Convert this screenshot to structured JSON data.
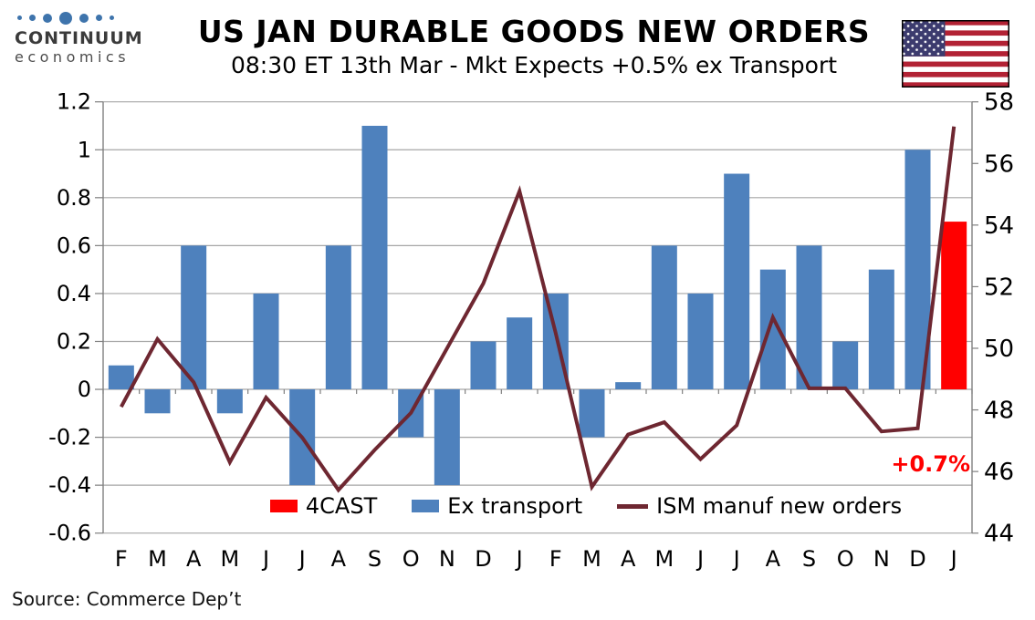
{
  "header": {
    "logo": {
      "line1": "CONTINUUM",
      "line2": "economics"
    },
    "title": "US JAN DURABLE GOODS NEW ORDERS",
    "subtitle": "08:30 ET 13th Mar - Mkt Expects +0.5% ex Transport"
  },
  "chart_data": {
    "type": "bar+line",
    "categories": [
      "F",
      "M",
      "A",
      "M",
      "J",
      "J",
      "A",
      "S",
      "O",
      "N",
      "D",
      "J",
      "F",
      "M",
      "A",
      "M",
      "J",
      "J",
      "A",
      "S",
      "O",
      "N",
      "D",
      "J"
    ],
    "series": [
      {
        "name": "4CAST",
        "type": "bar",
        "axis": "left",
        "color": "#FF0000",
        "values": [
          null,
          null,
          null,
          null,
          null,
          null,
          null,
          null,
          null,
          null,
          null,
          null,
          null,
          null,
          null,
          null,
          null,
          null,
          null,
          null,
          null,
          null,
          null,
          0.7
        ]
      },
      {
        "name": "Ex transport",
        "type": "bar",
        "axis": "left",
        "color": "#4E81BD",
        "values": [
          0.1,
          -0.1,
          0.6,
          -0.1,
          0.4,
          -0.4,
          0.6,
          1.1,
          -0.2,
          -0.4,
          0.2,
          0.3,
          0.4,
          -0.2,
          0.03,
          0.6,
          0.4,
          0.9,
          0.5,
          0.6,
          0.2,
          0.5,
          1.0,
          null
        ]
      },
      {
        "name": "ISM manuf new orders",
        "type": "line",
        "axis": "right",
        "color": "#6E2731",
        "values": [
          48.1,
          50.3,
          48.9,
          46.3,
          48.4,
          47.1,
          45.4,
          46.7,
          47.9,
          50.0,
          52.1,
          55.1,
          50.5,
          45.5,
          47.2,
          47.6,
          46.4,
          47.5,
          51.0,
          48.7,
          48.7,
          47.3,
          47.4,
          57.2
        ]
      }
    ],
    "left_axis": {
      "min": -0.6,
      "max": 1.2,
      "step": 0.2,
      "labels": [
        "1.2",
        "1",
        "0.8",
        "0.6",
        "0.4",
        "0.2",
        "0",
        "-0.2",
        "-0.4",
        "-0.6"
      ]
    },
    "right_axis": {
      "min": 44,
      "max": 58,
      "step": 2,
      "labels": [
        "58",
        "56",
        "54",
        "52",
        "50",
        "48",
        "46",
        "44"
      ]
    },
    "grid": true,
    "legend_position": "bottom-inside",
    "annotation": {
      "text": "+0.7%",
      "color": "#FF0000"
    }
  },
  "footer": {
    "source": "Source: Commerce Dep’t"
  }
}
